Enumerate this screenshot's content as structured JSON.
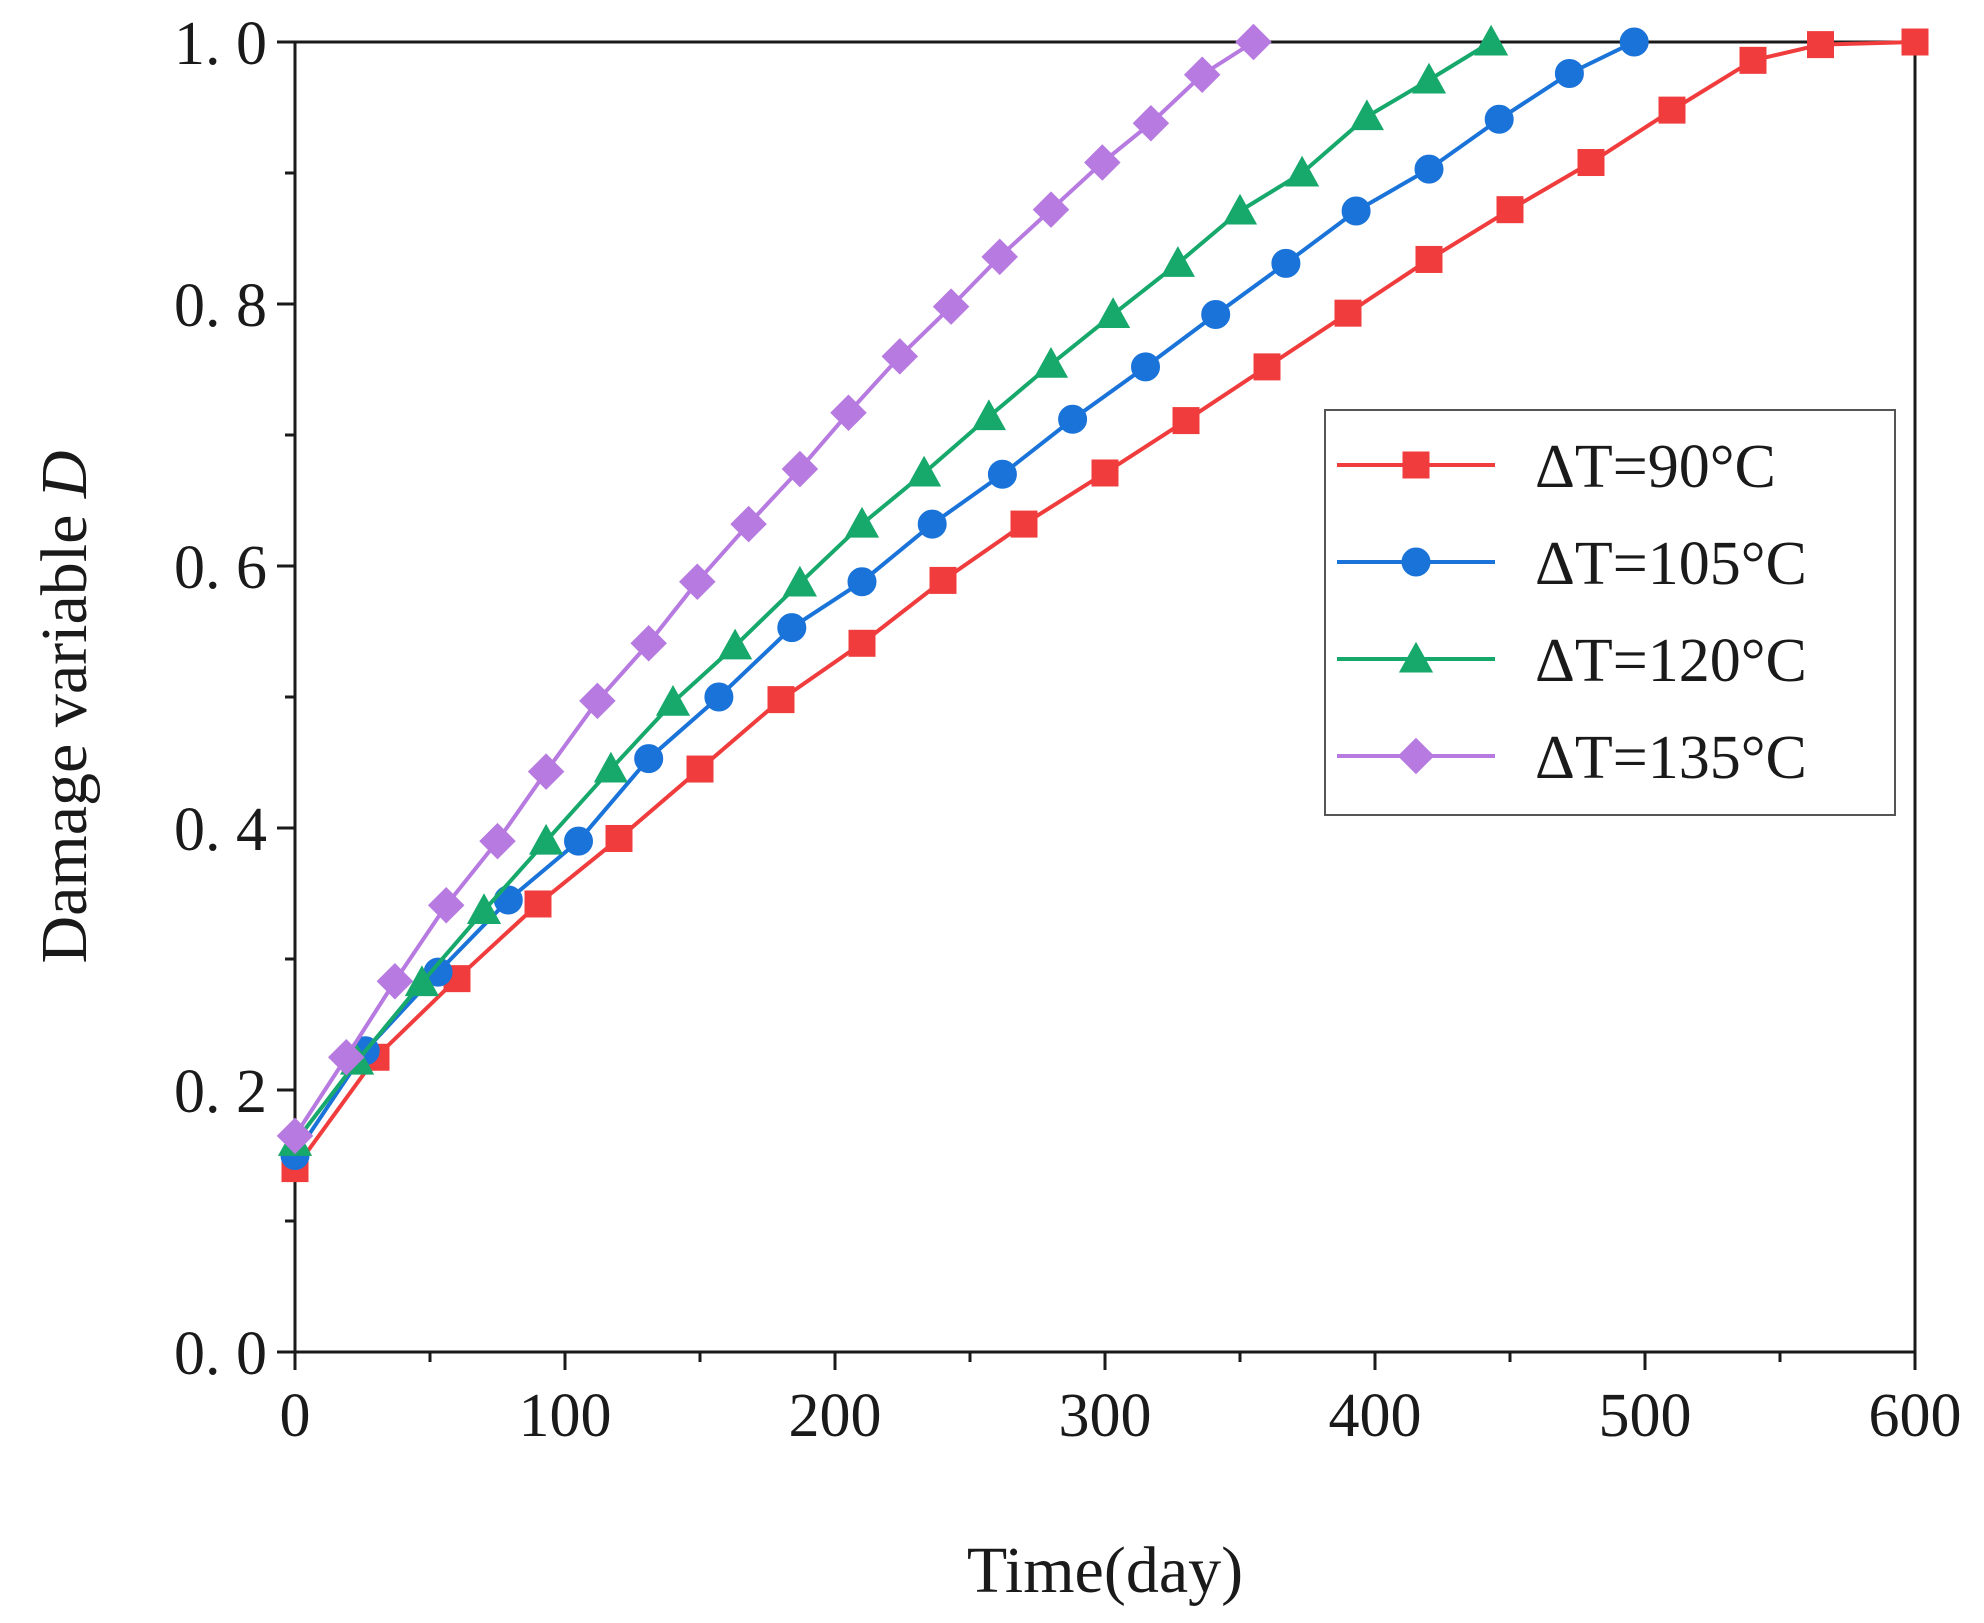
{
  "chart_data": {
    "type": "line",
    "title": "",
    "xlabel": "Time(day)",
    "ylabel": "Damage variable ",
    "ylabel_italic": "D",
    "xlim": [
      0,
      600
    ],
    "ylim": [
      0,
      1.0
    ],
    "x_ticks": [
      0,
      100,
      200,
      300,
      400,
      500,
      600
    ],
    "x_tick_labels": [
      "0",
      "100",
      "200",
      "300",
      "400",
      "500",
      "600"
    ],
    "y_ticks": [
      0,
      0.2,
      0.4,
      0.6,
      0.8,
      1.0
    ],
    "y_tick_labels": [
      "0. 0",
      "0. 2",
      "0. 4",
      "0. 6",
      "0. 8",
      "1. 0"
    ],
    "grid": false,
    "legend_position": "right-middle",
    "series": [
      {
        "name": "ΔT=90°C",
        "color": "#f03c3c",
        "marker": "square",
        "x": [
          0,
          30,
          60,
          90,
          120,
          150,
          180,
          210,
          240,
          270,
          300,
          330,
          360,
          390,
          420,
          450,
          480,
          510,
          540,
          565,
          600
        ],
        "y": [
          0.14,
          0.225,
          0.285,
          0.342,
          0.392,
          0.445,
          0.498,
          0.541,
          0.589,
          0.632,
          0.671,
          0.711,
          0.752,
          0.793,
          0.834,
          0.872,
          0.908,
          0.948,
          0.986,
          0.998,
          1.0
        ]
      },
      {
        "name": "ΔT=105°C",
        "color": "#1a73d9",
        "marker": "circle",
        "x": [
          0,
          26,
          53,
          79,
          105,
          131,
          157,
          184,
          210,
          236,
          262,
          288,
          315,
          341,
          367,
          393,
          420,
          446,
          472,
          496
        ],
        "y": [
          0.15,
          0.23,
          0.29,
          0.345,
          0.39,
          0.453,
          0.5,
          0.553,
          0.588,
          0.632,
          0.67,
          0.712,
          0.752,
          0.792,
          0.831,
          0.871,
          0.903,
          0.941,
          0.976,
          1.0
        ]
      },
      {
        "name": "ΔT=120°C",
        "color": "#17a86b",
        "marker": "triangle",
        "x": [
          0,
          23,
          47,
          70,
          93,
          117,
          140,
          163,
          187,
          210,
          233,
          257,
          280,
          303,
          327,
          350,
          373,
          397,
          420,
          443
        ],
        "y": [
          0.16,
          0.222,
          0.282,
          0.337,
          0.39,
          0.445,
          0.496,
          0.539,
          0.587,
          0.632,
          0.671,
          0.714,
          0.754,
          0.792,
          0.831,
          0.871,
          0.9,
          0.943,
          0.971,
          1.0
        ]
      },
      {
        "name": "ΔT=135°C",
        "color": "#b77ae0",
        "marker": "diamond",
        "x": [
          0,
          19,
          37,
          56,
          75,
          93,
          112,
          131,
          149,
          168,
          187,
          205,
          224,
          243,
          261,
          280,
          299,
          317,
          336,
          355
        ],
        "y": [
          0.165,
          0.225,
          0.283,
          0.341,
          0.39,
          0.443,
          0.497,
          0.541,
          0.588,
          0.632,
          0.674,
          0.717,
          0.76,
          0.798,
          0.836,
          0.872,
          0.908,
          0.938,
          0.975,
          1.0
        ]
      }
    ]
  }
}
